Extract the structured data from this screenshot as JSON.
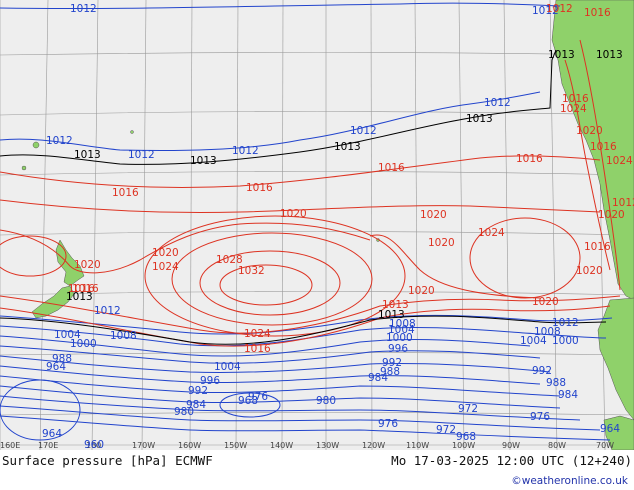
{
  "title_left": "Surface pressure [hPa] ECMWF",
  "title_right": "Mo 17-03-2025 12:00 UTC (12+240)",
  "credit": "©weatheronline.co.uk",
  "longitude_labels": [
    "160E",
    "170E",
    "180",
    "170W",
    "160W",
    "150W",
    "140W",
    "130W",
    "120W",
    "110W",
    "100W",
    "90W",
    "80W",
    "70W"
  ],
  "isobar_labels": {
    "blue": [
      "1012",
      "1012",
      "1012",
      "1012",
      "1012",
      "1012",
      "1012",
      "1012",
      "1012",
      "1008",
      "1008",
      "1004",
      "1004",
      "1000",
      "1000",
      "1004",
      "1000",
      "996",
      "992",
      "988",
      "984",
      "980",
      "976",
      "972",
      "968",
      "964",
      "960",
      "964",
      "996",
      "992",
      "988",
      "984",
      "980",
      "976",
      "968",
      "1008",
      "1004",
      "992",
      "988",
      "984",
      "976",
      "972",
      "964"
    ],
    "red": [
      "1016",
      "1016",
      "1016",
      "1016",
      "1016",
      "1016",
      "1020",
      "1020",
      "1020",
      "1020",
      "1020",
      "1020",
      "1024",
      "1024",
      "1024",
      "1028",
      "1032",
      "1016",
      "1016",
      "1020",
      "1013",
      "1020",
      "1024",
      "1016",
      "1012",
      "1016",
      "1020",
      "1024",
      "1020",
      "1012",
      "1016"
    ],
    "black": [
      "1013",
      "1013",
      "1013",
      "1013",
      "1013",
      "1013",
      "1013",
      "1013"
    ]
  },
  "colors": {
    "ocean": "#eeeeee",
    "land": "#8fd16a",
    "grid": "#999999",
    "high_isobars": "#dd3322",
    "low_isobars": "#2244cc",
    "reference_isobar": "#000000"
  }
}
